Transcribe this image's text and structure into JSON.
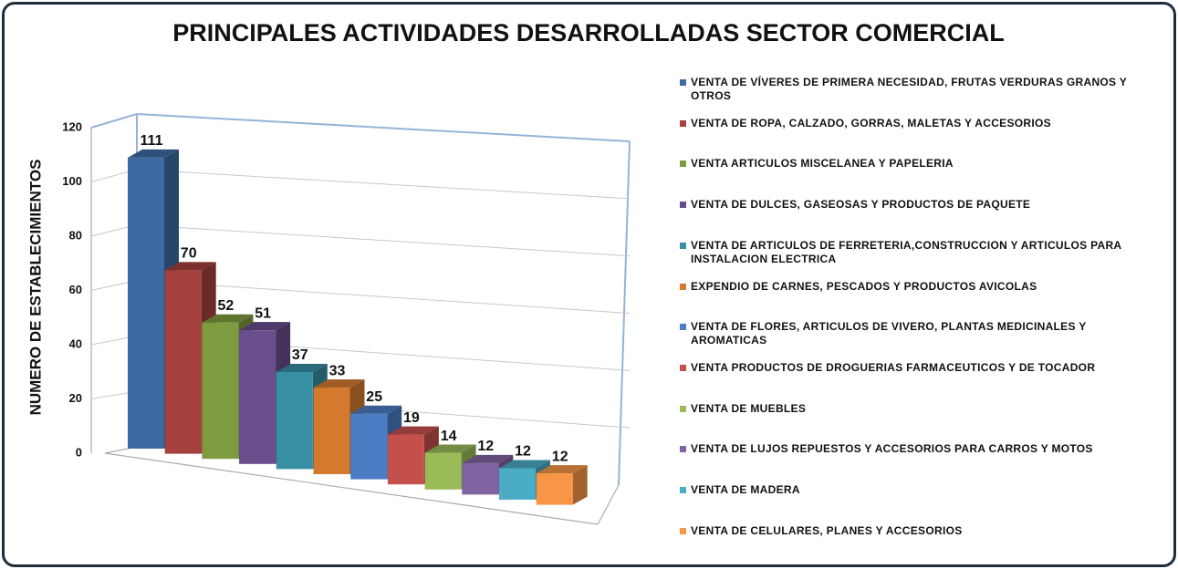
{
  "chart_data": {
    "type": "bar3d",
    "title": "PRINCIPALES ACTIVIDADES DESARROLLADAS SECTOR COMERCIAL",
    "y_label": "NUMERO DE ESTABLECIMIENTOS",
    "categories": [
      "VENTA DE VÍVERES DE PRIMERA NECESIDAD, FRUTAS VERDURAS GRANOS Y OTROS",
      "VENTA DE ROPA, CALZADO, GORRAS, MALETAS Y ACCESORIOS",
      "VENTA ARTICULOS MISCELANEA Y PAPELERIA",
      "VENTA DE DULCES, GASEOSAS Y PRODUCTOS DE PAQUETE",
      "VENTA DE ARTICULOS DE FERRETERIA,CONSTRUCCION Y ARTICULOS PARA INSTALACION ELECTRICA",
      "EXPENDIO DE CARNES, PESCADOS Y PRODUCTOS AVICOLAS",
      "VENTA DE FLORES, ARTICULOS DE VIVERO, PLANTAS MEDICINALES Y AROMATICAS",
      "VENTA PRODUCTOS DE DROGUERIAS FARMACEUTICOS Y DE TOCADOR",
      "VENTA DE MUEBLES",
      "VENTA DE LUJOS REPUESTOS  Y ACCESORIOS PARA CARROS Y MOTOS",
      "VENTA DE MADERA",
      "VENTA DE CELULARES, PLANES Y ACCESORIOS"
    ],
    "values": [
      111,
      70,
      52,
      51,
      37,
      33,
      25,
      19,
      14,
      12,
      12,
      12
    ],
    "colors": [
      "#3d6aa3",
      "#a4403d",
      "#7f9b3f",
      "#6a4d8c",
      "#378fa3",
      "#d47a2f",
      "#4a7dc4",
      "#c4504c",
      "#9bbb59",
      "#8064a2",
      "#4bacc6",
      "#f79646"
    ],
    "ylim": [
      0,
      120
    ],
    "yticks": [
      0,
      20,
      40,
      60,
      80,
      100,
      120
    ],
    "grid": true,
    "legend": "right"
  }
}
